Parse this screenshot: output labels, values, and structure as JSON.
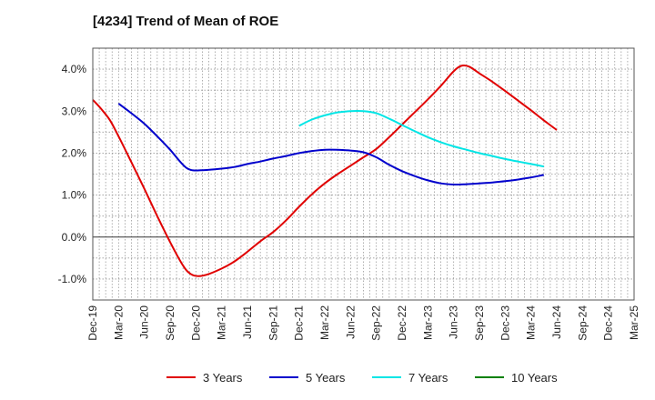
{
  "chart_data": {
    "type": "line",
    "title": "[4234]  Trend of Mean of ROE",
    "xlabel": "",
    "ylabel": "",
    "x_ticks": [
      "Dec-19",
      "Mar-20",
      "Jun-20",
      "Sep-20",
      "Dec-20",
      "Mar-21",
      "Jun-21",
      "Sep-21",
      "Dec-21",
      "Mar-22",
      "Jun-22",
      "Sep-22",
      "Dec-22",
      "Mar-23",
      "Jun-23",
      "Sep-23",
      "Dec-23",
      "Mar-24",
      "Jun-24",
      "Sep-24",
      "Dec-24",
      "Mar-25"
    ],
    "y_ticks": [
      "-1.0%",
      "0.0%",
      "1.0%",
      "2.0%",
      "3.0%",
      "4.0%"
    ],
    "ylim": [
      -1.5,
      4.5
    ],
    "grid": true,
    "legend_position": "bottom",
    "series": [
      {
        "name": "3 Years",
        "color": "#e00000",
        "points": [
          [
            0,
            3.27
          ],
          [
            0.33,
            3.05
          ],
          [
            0.67,
            2.78
          ],
          [
            1,
            2.4
          ],
          [
            1.5,
            1.78
          ],
          [
            2,
            1.15
          ],
          [
            2.5,
            0.5
          ],
          [
            3,
            -0.12
          ],
          [
            3.5,
            -0.68
          ],
          [
            3.8,
            -0.88
          ],
          [
            4.1,
            -0.93
          ],
          [
            4.5,
            -0.88
          ],
          [
            5,
            -0.75
          ],
          [
            5.5,
            -0.58
          ],
          [
            6,
            -0.35
          ],
          [
            6.5,
            -0.1
          ],
          [
            7,
            0.12
          ],
          [
            7.5,
            0.4
          ],
          [
            8,
            0.72
          ],
          [
            8.5,
            1.02
          ],
          [
            9,
            1.28
          ],
          [
            9.5,
            1.5
          ],
          [
            10,
            1.7
          ],
          [
            10.5,
            1.9
          ],
          [
            11,
            2.1
          ],
          [
            11.5,
            2.38
          ],
          [
            12,
            2.68
          ],
          [
            12.5,
            2.98
          ],
          [
            13,
            3.28
          ],
          [
            13.5,
            3.6
          ],
          [
            14,
            3.95
          ],
          [
            14.3,
            4.08
          ],
          [
            14.6,
            4.06
          ],
          [
            15,
            3.9
          ],
          [
            15.5,
            3.7
          ],
          [
            16,
            3.48
          ],
          [
            16.5,
            3.25
          ],
          [
            17,
            3.02
          ],
          [
            17.5,
            2.78
          ],
          [
            18,
            2.55
          ]
        ]
      },
      {
        "name": "5 Years",
        "color": "#0000cc",
        "points": [
          [
            1,
            3.18
          ],
          [
            1.5,
            2.95
          ],
          [
            2,
            2.7
          ],
          [
            2.5,
            2.4
          ],
          [
            3,
            2.08
          ],
          [
            3.5,
            1.72
          ],
          [
            3.8,
            1.6
          ],
          [
            4.2,
            1.59
          ],
          [
            5,
            1.63
          ],
          [
            5.5,
            1.67
          ],
          [
            6,
            1.74
          ],
          [
            6.5,
            1.8
          ],
          [
            7,
            1.87
          ],
          [
            7.5,
            1.93
          ],
          [
            8,
            2.0
          ],
          [
            8.5,
            2.05
          ],
          [
            9,
            2.08
          ],
          [
            9.5,
            2.08
          ],
          [
            10,
            2.06
          ],
          [
            10.5,
            2.02
          ],
          [
            11,
            1.9
          ],
          [
            11.5,
            1.72
          ],
          [
            12,
            1.57
          ],
          [
            12.5,
            1.45
          ],
          [
            13,
            1.35
          ],
          [
            13.5,
            1.28
          ],
          [
            14,
            1.25
          ],
          [
            14.5,
            1.26
          ],
          [
            15,
            1.28
          ],
          [
            15.5,
            1.3
          ],
          [
            16,
            1.33
          ],
          [
            16.5,
            1.37
          ],
          [
            17,
            1.42
          ],
          [
            17.5,
            1.48
          ]
        ]
      },
      {
        "name": "7 Years",
        "color": "#00e5e5",
        "points": [
          [
            8,
            2.65
          ],
          [
            8.5,
            2.8
          ],
          [
            9,
            2.9
          ],
          [
            9.5,
            2.97
          ],
          [
            10,
            3.0
          ],
          [
            10.5,
            3.0
          ],
          [
            11,
            2.95
          ],
          [
            11.5,
            2.82
          ],
          [
            12,
            2.67
          ],
          [
            12.5,
            2.52
          ],
          [
            13,
            2.38
          ],
          [
            13.5,
            2.26
          ],
          [
            14,
            2.16
          ],
          [
            14.5,
            2.08
          ],
          [
            15,
            2.0
          ],
          [
            15.5,
            1.93
          ],
          [
            16,
            1.86
          ],
          [
            16.5,
            1.8
          ],
          [
            17,
            1.74
          ],
          [
            17.5,
            1.68
          ]
        ]
      },
      {
        "name": "10 Years",
        "color": "#008000",
        "points": []
      }
    ]
  }
}
